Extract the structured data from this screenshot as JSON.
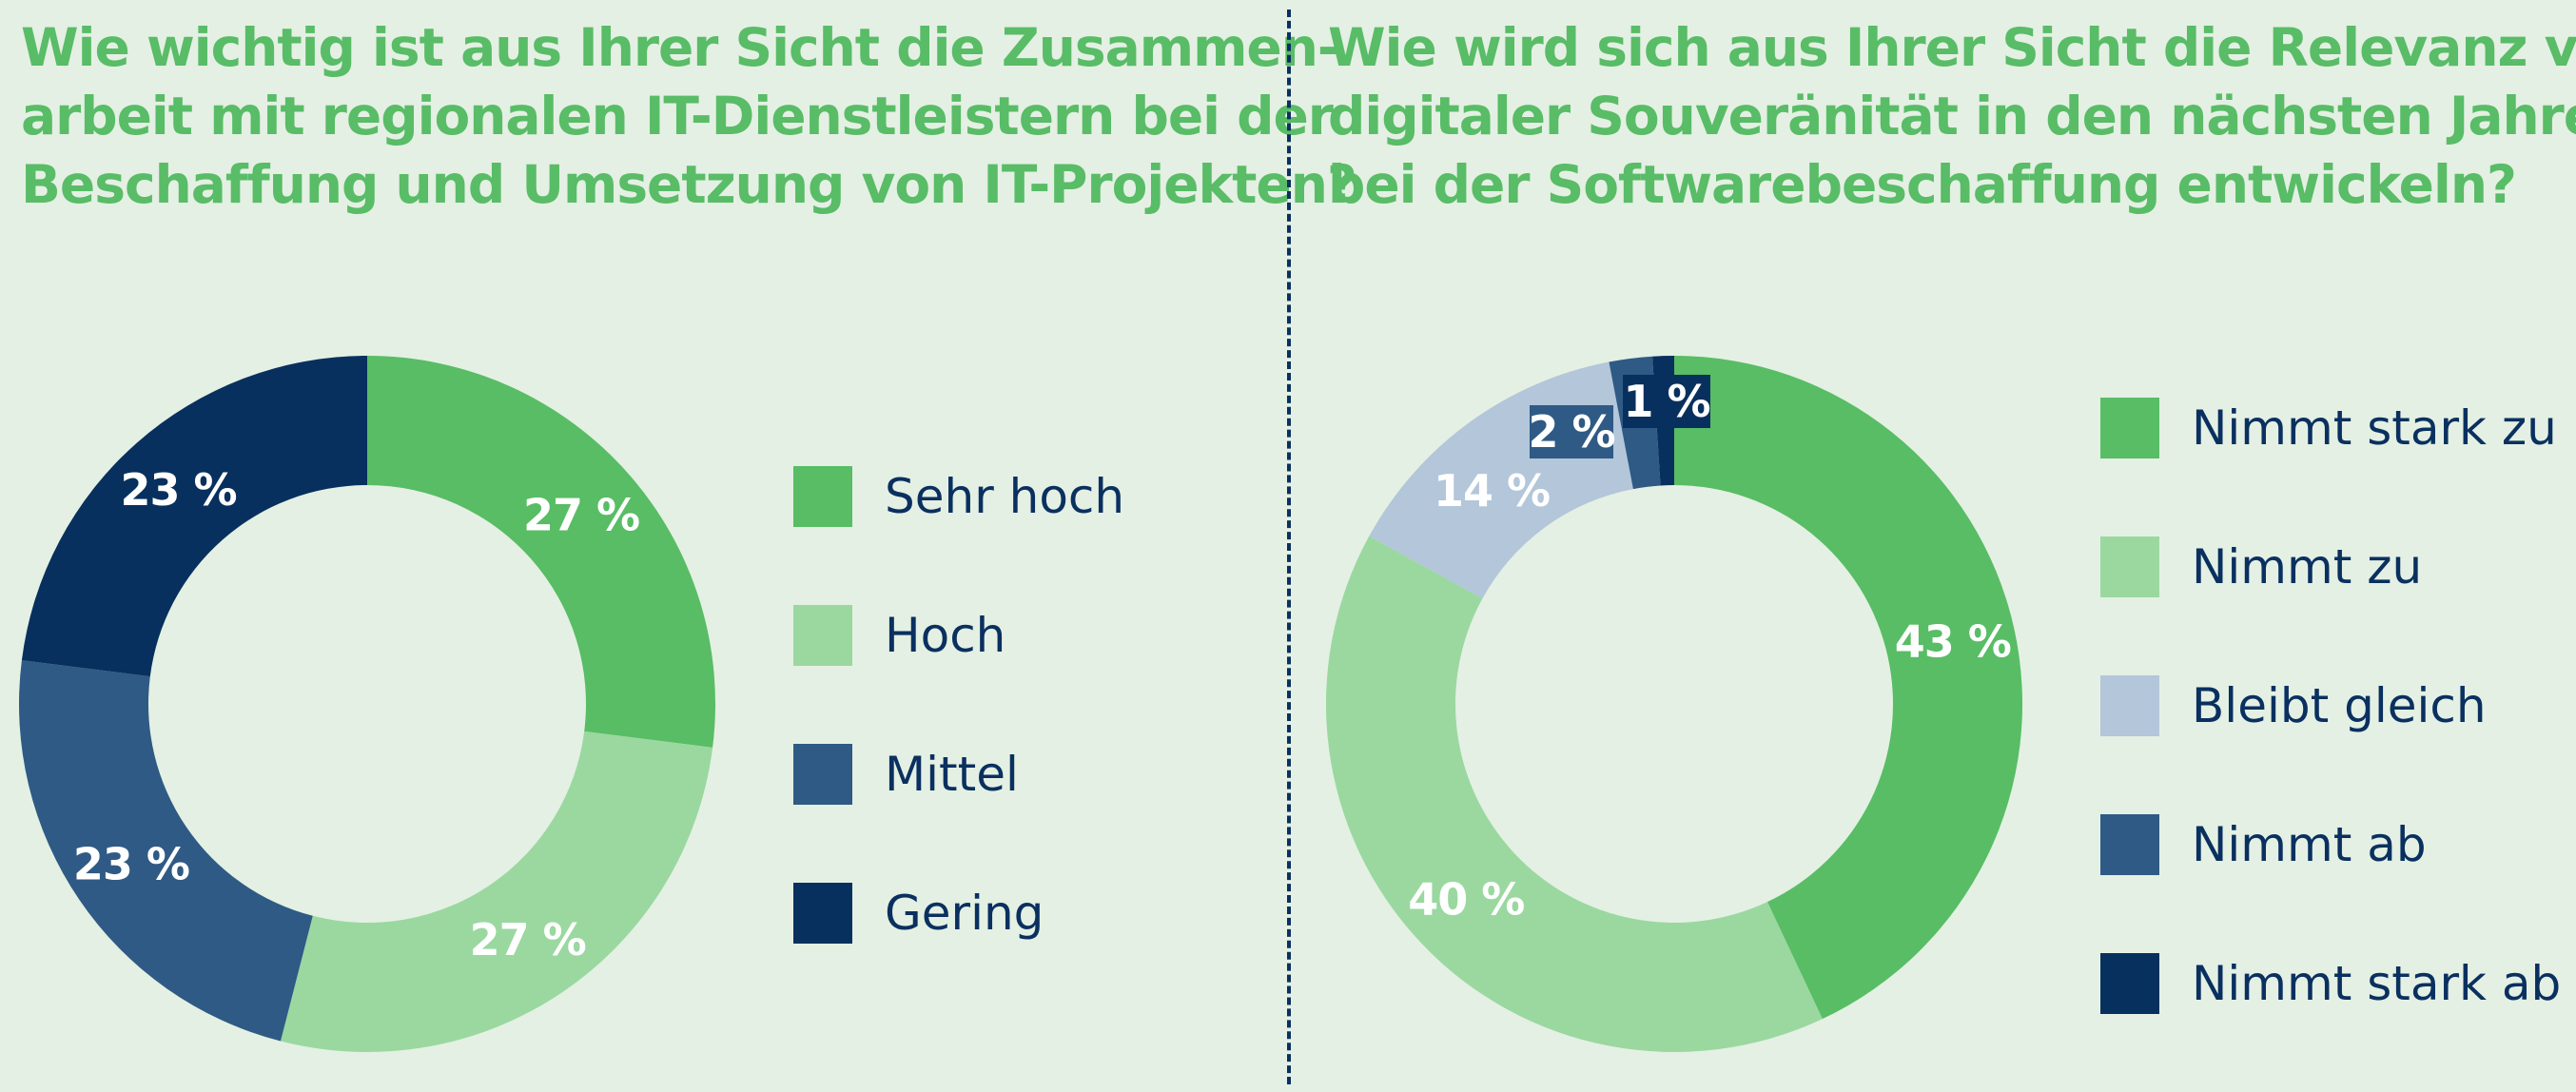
{
  "chart_data": [
    {
      "type": "pie",
      "style": "donut",
      "title": "Wie wichtig ist aus Ihrer Sicht die Zusammen-arbeit mit regionalen IT-Dienstleistern bei der Beschaffung und Umsetzung von IT-Projekten?",
      "title_lines": [
        "Wie wichtig ist aus Ihrer Sicht die Zusammen-",
        "arbeit mit regionalen IT-Dienstleistern bei der",
        "Beschaffung und Umsetzung von IT-Projekten?"
      ],
      "legend_position": "right",
      "slices": [
        {
          "label": "Sehr hoch",
          "value": 27,
          "value_label": "27 %",
          "color": "#58bd65"
        },
        {
          "label": "Hoch",
          "value": 27,
          "value_label": "27 %",
          "color": "#9ad8a0"
        },
        {
          "label": "Mittel",
          "value": 23,
          "value_label": "23 %",
          "color": "#2f5a85"
        },
        {
          "label": "Gering",
          "value": 23,
          "value_label": "23 %",
          "color": "#08305e"
        }
      ]
    },
    {
      "type": "pie",
      "style": "donut",
      "title": "Wie wird sich aus Ihrer Sicht die Relevanz von digitaler Souveränität in den nächsten Jahren bei der Softwarebeschaffung entwickeln?",
      "title_lines": [
        "Wie wird sich aus Ihrer Sicht die Relevanz von",
        "digitaler Souveränität in den nächsten Jahren",
        "bei der Softwarebeschaffung entwickeln?"
      ],
      "legend_position": "right",
      "slices": [
        {
          "label": "Nimmt stark zu",
          "value": 43,
          "value_label": "43 %",
          "color": "#58bd65"
        },
        {
          "label": "Nimmt zu",
          "value": 40,
          "value_label": "40 %",
          "color": "#9ad8a0"
        },
        {
          "label": "Bleibt gleich",
          "value": 14,
          "value_label": "14 %",
          "color": "#b3c6da"
        },
        {
          "label": "Nimmt ab",
          "value": 2,
          "value_label": "2 %",
          "color": "#2f5a85"
        },
        {
          "label": "Nimmt stark ab",
          "value": 1,
          "value_label": "1 %",
          "color": "#08305e"
        }
      ]
    }
  ]
}
